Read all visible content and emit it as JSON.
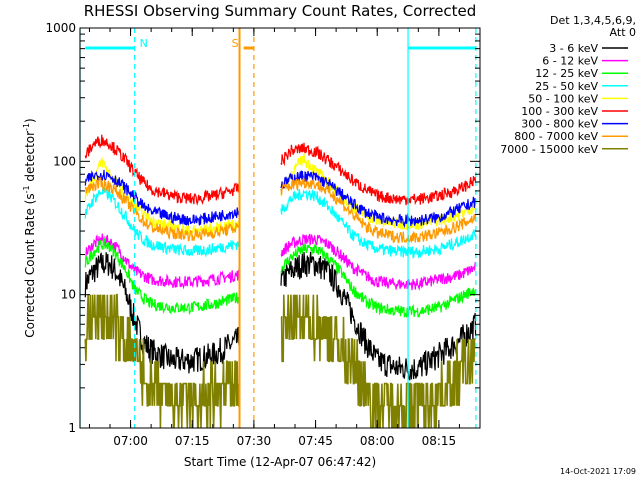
{
  "chart_data": {
    "type": "line",
    "title": "RHESSI Observing Summary Count Rates, Corrected",
    "xlabel": "Start Time (12-Apr-07 06:47:42)",
    "ylabel": "Corrected Count Rate (s",
    "ylabel_sup1": "-1",
    "ylabel_mid": " detector",
    "ylabel_sup2": "-1",
    "ylabel_end": ")",
    "yscale": "log",
    "ylim": [
      1,
      1000
    ],
    "xlim": [
      "06:47:42",
      "08:25:00"
    ],
    "x_ticks": [
      "07:00",
      "07:15",
      "07:30",
      "07:45",
      "08:00",
      "08:15"
    ],
    "y_ticks": [
      "1",
      "10",
      "100",
      "1000"
    ],
    "legend_header": [
      "Det 1,3,4,5,6,9,",
      "Att 0"
    ],
    "legend_position": "right",
    "gaps": [
      [
        "07:26:30",
        "07:36:30"
      ]
    ],
    "series": [
      {
        "name": "3 - 6 keV",
        "color": "#000000",
        "x": [
          "06:49",
          "06:51",
          "06:53",
          "06:55",
          "06:57",
          "06:59",
          "07:01",
          "07:03",
          "07:05",
          "07:10",
          "07:15",
          "07:20",
          "07:26",
          "07:36",
          "07:39",
          "07:42",
          "07:45",
          "07:48",
          "07:51",
          "07:54",
          "07:57",
          "08:00",
          "08:05",
          "08:10",
          "08:15",
          "08:20",
          "08:24"
        ],
        "y": [
          12,
          15,
          17,
          17,
          14,
          10,
          6.5,
          4.5,
          3.8,
          3.2,
          3.2,
          3.5,
          4.5,
          12,
          15,
          17,
          17,
          15,
          11,
          7,
          4.5,
          3.2,
          2.8,
          2.8,
          3.5,
          4.5,
          6
        ]
      },
      {
        "name": "6 - 12 keV",
        "color": "#ff00ff",
        "x": [
          "06:49",
          "06:51",
          "06:53",
          "06:55",
          "06:57",
          "06:59",
          "07:01",
          "07:03",
          "07:05",
          "07:10",
          "07:15",
          "07:20",
          "07:26",
          "07:36",
          "07:39",
          "07:42",
          "07:45",
          "07:48",
          "07:51",
          "07:54",
          "07:57",
          "08:00",
          "08:05",
          "08:10",
          "08:15",
          "08:20",
          "08:24"
        ],
        "y": [
          20,
          24,
          26,
          25,
          22,
          18,
          15,
          14,
          13,
          12.5,
          12.5,
          13,
          14,
          20,
          24,
          26,
          26,
          24,
          20,
          16,
          14,
          12.5,
          12,
          12,
          13,
          14,
          16
        ]
      },
      {
        "name": "12 - 25 keV",
        "color": "#00ff00",
        "x": [
          "06:49",
          "06:51",
          "06:53",
          "06:55",
          "06:57",
          "06:59",
          "07:01",
          "07:03",
          "07:05",
          "07:10",
          "07:15",
          "07:20",
          "07:26",
          "07:36",
          "07:39",
          "07:42",
          "07:45",
          "07:48",
          "07:51",
          "07:54",
          "07:57",
          "08:00",
          "08:05",
          "08:10",
          "08:15",
          "08:20",
          "08:24"
        ],
        "y": [
          17,
          21,
          24,
          23,
          19,
          15,
          11,
          9.5,
          8.5,
          8,
          8,
          8.5,
          9.5,
          15,
          19,
          22,
          22,
          19,
          15,
          11,
          9,
          8,
          7.5,
          7.5,
          8,
          9.5,
          11
        ]
      },
      {
        "name": "25 - 50 keV",
        "color": "#00ffff",
        "x": [
          "06:49",
          "06:51",
          "06:53",
          "06:55",
          "06:57",
          "06:59",
          "07:01",
          "07:03",
          "07:05",
          "07:10",
          "07:15",
          "07:20",
          "07:26",
          "07:36",
          "07:39",
          "07:42",
          "07:45",
          "07:48",
          "07:51",
          "07:54",
          "07:57",
          "08:00",
          "08:05",
          "08:10",
          "08:15",
          "08:20",
          "08:24"
        ],
        "y": [
          40,
          52,
          60,
          55,
          46,
          38,
          30,
          26,
          24,
          22,
          21,
          22,
          24,
          40,
          52,
          58,
          55,
          46,
          36,
          28,
          24,
          22,
          21,
          21,
          22,
          25,
          29
        ]
      },
      {
        "name": "50 - 100 keV",
        "color": "#ffff00",
        "x": [
          "06:49",
          "06:51",
          "06:53",
          "06:55",
          "06:57",
          "06:59",
          "07:01",
          "07:03",
          "07:05",
          "07:10",
          "07:15",
          "07:20",
          "07:26",
          "07:36",
          "07:39",
          "07:42",
          "07:45",
          "07:48",
          "07:51",
          "07:54",
          "07:57",
          "08:00",
          "08:05",
          "08:10",
          "08:15",
          "08:20",
          "08:24"
        ],
        "y": [
          55,
          75,
          100,
          80,
          66,
          55,
          46,
          40,
          36,
          32,
          30,
          31,
          34,
          55,
          80,
          105,
          85,
          70,
          56,
          46,
          40,
          36,
          34,
          34,
          36,
          40,
          46
        ]
      },
      {
        "name": "100 - 300 keV",
        "color": "#ff0000",
        "x": [
          "06:49",
          "06:51",
          "06:53",
          "06:55",
          "06:57",
          "06:59",
          "07:01",
          "07:03",
          "07:05",
          "07:10",
          "07:15",
          "07:20",
          "07:26",
          "07:36",
          "07:39",
          "07:42",
          "07:45",
          "07:48",
          "07:51",
          "07:54",
          "07:57",
          "08:00",
          "08:05",
          "08:10",
          "08:15",
          "08:20",
          "08:24"
        ],
        "y": [
          110,
          135,
          145,
          135,
          118,
          100,
          82,
          70,
          62,
          55,
          52,
          55,
          62,
          95,
          120,
          125,
          118,
          102,
          86,
          72,
          62,
          55,
          52,
          52,
          55,
          62,
          72
        ]
      },
      {
        "name": "300 - 800 keV",
        "color": "#0000ff",
        "x": [
          "06:49",
          "06:51",
          "06:53",
          "06:55",
          "06:57",
          "06:59",
          "07:01",
          "07:03",
          "07:05",
          "07:10",
          "07:15",
          "07:20",
          "07:26",
          "07:36",
          "07:39",
          "07:42",
          "07:45",
          "07:48",
          "07:51",
          "07:54",
          "07:57",
          "08:00",
          "08:05",
          "08:10",
          "08:15",
          "08:20",
          "08:24"
        ],
        "y": [
          70,
          78,
          80,
          78,
          70,
          62,
          54,
          46,
          42,
          38,
          36,
          38,
          42,
          64,
          74,
          78,
          76,
          68,
          58,
          48,
          42,
          38,
          36,
          36,
          38,
          44,
          50
        ]
      },
      {
        "name": "800 - 7000 keV",
        "color": "#ff9900",
        "x": [
          "06:49",
          "06:51",
          "06:53",
          "06:55",
          "06:57",
          "06:59",
          "07:01",
          "07:03",
          "07:05",
          "07:10",
          "07:15",
          "07:20",
          "07:26",
          "07:36",
          "07:39",
          "07:42",
          "07:45",
          "07:48",
          "07:51",
          "07:54",
          "07:57",
          "08:00",
          "08:05",
          "08:10",
          "08:15",
          "08:20",
          "08:24"
        ],
        "y": [
          60,
          66,
          68,
          65,
          58,
          50,
          42,
          36,
          32,
          29,
          28,
          29,
          32,
          60,
          66,
          70,
          68,
          60,
          50,
          40,
          33,
          29,
          27,
          27,
          29,
          33,
          38
        ]
      },
      {
        "name": "7000 - 15000 keV",
        "color": "#808000",
        "x": [
          "06:49",
          "06:51",
          "06:53",
          "06:55",
          "06:57",
          "06:59",
          "07:01",
          "07:03",
          "07:05",
          "07:10",
          "07:15",
          "07:20",
          "07:26",
          "07:36",
          "07:39",
          "07:42",
          "07:45",
          "07:48",
          "07:51",
          "07:54",
          "07:57",
          "08:00",
          "08:05",
          "08:10",
          "08:15",
          "08:20",
          "08:24"
        ],
        "y": [
          5.5,
          6.5,
          6.8,
          6.5,
          5.5,
          4.5,
          3.5,
          2.5,
          1.8,
          1.6,
          1.6,
          1.7,
          2.2,
          5,
          6,
          6.5,
          6.2,
          5.2,
          4,
          3,
          2,
          1.6,
          1.5,
          1.5,
          1.8,
          2.5,
          3.5
        ]
      }
    ],
    "annotations": [
      {
        "label": "N",
        "color": "#00ffff",
        "bar": [
          "06:49:00",
          "07:01:00"
        ],
        "line": "07:01:00"
      },
      {
        "label": "S",
        "color": "#ff9900",
        "bar": [
          "07:27:30",
          "07:30:00"
        ],
        "line": "07:30:00"
      },
      {
        "label": "",
        "color": "#00ffff",
        "bar": [
          "08:07:30",
          "08:24:00"
        ],
        "line": "08:24:00"
      }
    ],
    "vlines": [
      {
        "x": "06:47:42",
        "color": "#00ffff"
      },
      {
        "x": "07:26:30",
        "color": "#ff9900"
      },
      {
        "x": "08:07:30",
        "color": "#00ffff"
      }
    ]
  },
  "timestamp": "14-Oct-2021 17:09"
}
